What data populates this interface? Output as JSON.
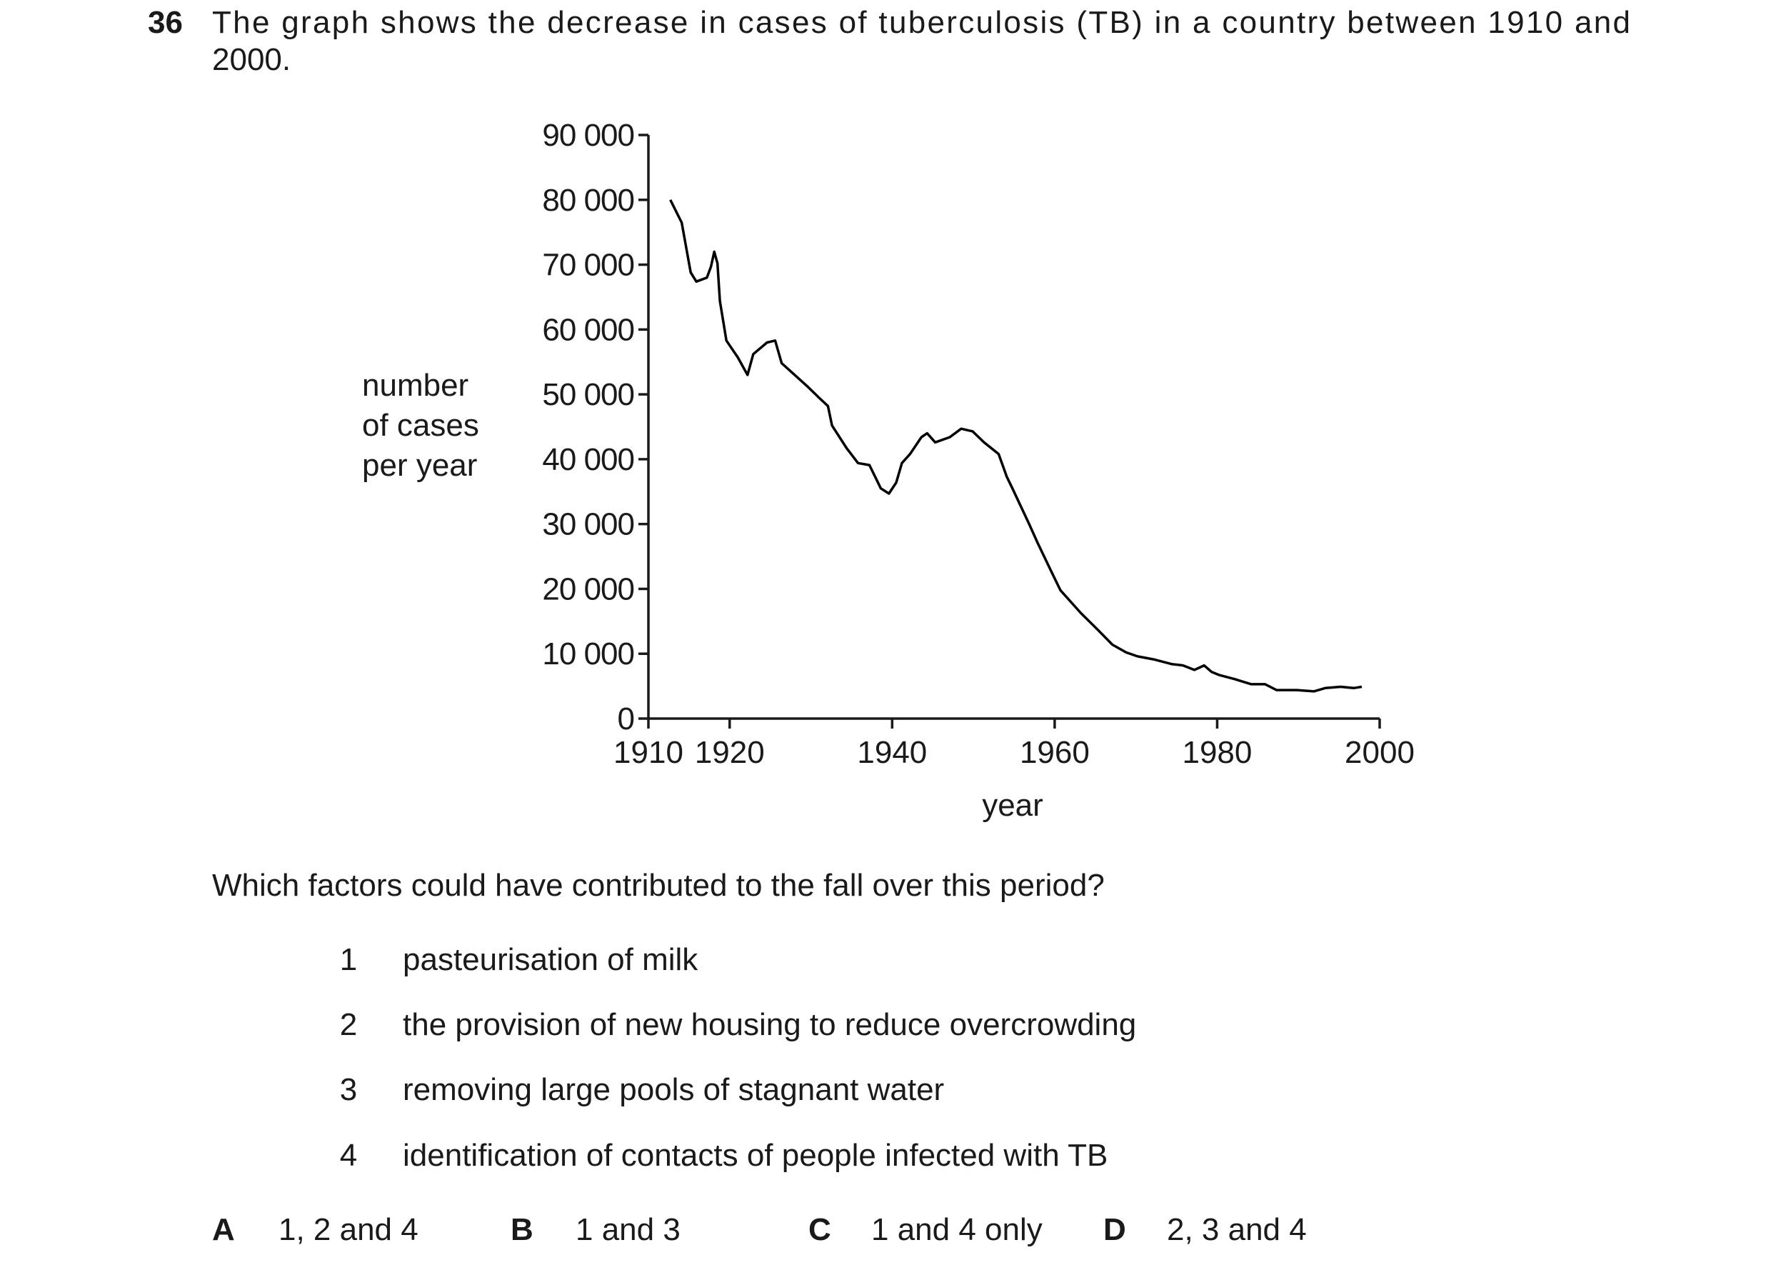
{
  "question": {
    "number": "36",
    "text_lines": [
      "The graph shows the decrease in cases of tuberculosis (TB) in a country between 1910 and",
      "2000."
    ],
    "prompt": "Which factors could have contributed to the fall over this period?",
    "statements": [
      {
        "number": "1",
        "text": "pasteurisation of milk"
      },
      {
        "number": "2",
        "text": "the provision of new housing to reduce overcrowding"
      },
      {
        "number": "3",
        "text": "removing large pools of stagnant water"
      },
      {
        "number": "4",
        "text": "identification of contacts of people infected with TB"
      }
    ],
    "options": [
      {
        "letter": "A",
        "text": "1, 2 and 4"
      },
      {
        "letter": "B",
        "text": "1 and 3"
      },
      {
        "letter": "C",
        "text": "1 and 4 only"
      },
      {
        "letter": "D",
        "text": "2, 3 and 4"
      }
    ]
  },
  "chart_data": {
    "type": "line",
    "ylabel_lines": [
      "number",
      "of cases",
      "per year"
    ],
    "xlabel": "year",
    "xlim": [
      1910,
      2000
    ],
    "xticks": [
      1910,
      1920,
      1940,
      1960,
      1980,
      2000
    ],
    "ylim": [
      0,
      90000
    ],
    "yticks": [
      0,
      {
        "value": 10000,
        "label": "10 000"
      },
      {
        "value": 20000,
        "label": "20 000"
      },
      {
        "value": 30000,
        "label": "30 000"
      },
      {
        "value": 40000,
        "label": "40 000"
      },
      {
        "value": 50000,
        "label": "50 000"
      },
      {
        "value": 60000,
        "label": "60 000"
      },
      {
        "value": 70000,
        "label": "70 000"
      },
      {
        "value": 80000,
        "label": "80 000"
      },
      {
        "value": 90000,
        "label": "90 000"
      }
    ],
    "grid": false,
    "series": [
      {
        "color": "#000000",
        "x": [
          1912.7,
          1914.1,
          1915.2,
          1915.9,
          1917.2,
          1917.7,
          1918.1,
          1918.5,
          1918.8,
          1919.6,
          1921.0,
          1922.2,
          1922.9,
          1924.6,
          1925.6,
          1926.4,
          1929.5,
          1930.9,
          1932.1,
          1932.6,
          1934.4,
          1935.8,
          1937.2,
          1938.6,
          1939.6,
          1940.5,
          1941.2,
          1942.2,
          1943.6,
          1944.3,
          1945.3,
          1947.1,
          1948.5,
          1949.9,
          1951.3,
          1953.1,
          1954.1,
          1954.8,
          1956.9,
          1957.9,
          1959.7,
          1960.7,
          1963.2,
          1965.3,
          1967.1,
          1968.8,
          1970.2,
          1972.3,
          1974.4,
          1975.8,
          1977.2,
          1978.4,
          1979.3,
          1980.3,
          1982.1,
          1984.2,
          1985.9,
          1987.3,
          1989.8,
          1991.9,
          1993.3,
          1995.2,
          1996.8,
          1997.8
        ],
        "values": [
          80000,
          76500,
          68800,
          67400,
          68000,
          69700,
          72000,
          70200,
          64400,
          58300,
          55700,
          53000,
          56200,
          58000,
          58300,
          54800,
          51300,
          49600,
          48200,
          45200,
          41700,
          39400,
          39100,
          35500,
          34700,
          36400,
          39400,
          40800,
          43400,
          44000,
          42600,
          43400,
          44700,
          44300,
          42600,
          40800,
          37300,
          35500,
          29900,
          27100,
          22400,
          19800,
          16300,
          13700,
          11400,
          10200,
          9600,
          9100,
          8400,
          8200,
          7500,
          8200,
          7200,
          6700,
          6100,
          5300,
          5300,
          4400,
          4400,
          4200,
          4700,
          4900,
          4700,
          4900
        ]
      }
    ]
  }
}
